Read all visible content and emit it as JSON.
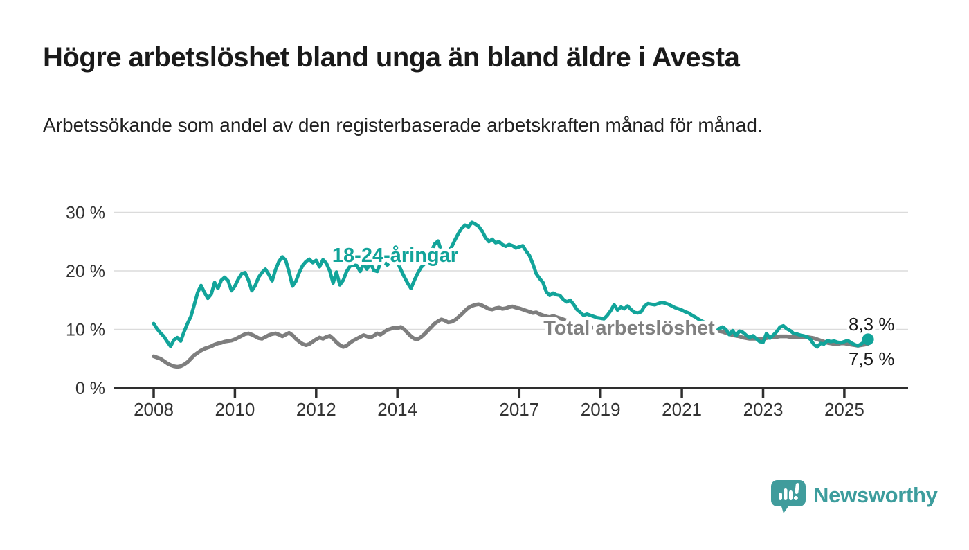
{
  "header": {
    "title": "Högre arbetslöshet bland unga än bland äldre i Avesta",
    "subtitle": "Arbetssökande som andel av den registerbaserade arbetskraften månad för månad."
  },
  "chart_data": {
    "type": "line",
    "title": "Högre arbetslöshet bland unga än bland äldre i Avesta",
    "subtitle": "Arbetssökande som andel av den registerbaserade arbetskraften månad för månad.",
    "unit": "%",
    "frequency": "monthly",
    "x_start": "2008-01",
    "x_end": "2025-08",
    "ylim": [
      0,
      32
    ],
    "grid": "horizontal",
    "grid_color": "#dbdbdb",
    "axis_color": "#2e2e2e",
    "tick_label_color": "#333333",
    "y_ticks": [
      {
        "value": 30,
        "label": "30 %"
      },
      {
        "value": 20,
        "label": "20 %"
      },
      {
        "value": 10,
        "label": "10 %"
      },
      {
        "value": 0,
        "label": "0 %"
      }
    ],
    "x_ticks": [
      {
        "year": 2008,
        "label": "2008"
      },
      {
        "year": 2010,
        "label": "2010"
      },
      {
        "year": 2012,
        "label": "2012"
      },
      {
        "year": 2014,
        "label": "2014"
      },
      {
        "year": 2017,
        "label": "2017"
      },
      {
        "year": 2019,
        "label": "2019"
      },
      {
        "year": 2021,
        "label": "2021"
      },
      {
        "year": 2023,
        "label": "2023"
      },
      {
        "year": 2025,
        "label": "2025"
      }
    ],
    "series": [
      {
        "name": "Total arbetslöshet",
        "label_text": "Total arbetslöshet",
        "color": "#7e7e7e",
        "label_color": "#808080",
        "end_label": "7,5 %",
        "end_value": 7.5,
        "end_dot": false,
        "values": [
          5.4,
          5.2,
          5.0,
          4.6,
          4.2,
          3.9,
          3.7,
          3.6,
          3.7,
          4.0,
          4.4,
          5.0,
          5.6,
          6.0,
          6.4,
          6.7,
          6.9,
          7.1,
          7.4,
          7.6,
          7.7,
          7.9,
          8.0,
          8.1,
          8.3,
          8.6,
          8.9,
          9.2,
          9.3,
          9.1,
          8.8,
          8.5,
          8.4,
          8.7,
          9.0,
          9.2,
          9.3,
          9.1,
          8.8,
          9.1,
          9.4,
          9.0,
          8.4,
          7.9,
          7.5,
          7.3,
          7.5,
          7.9,
          8.3,
          8.6,
          8.4,
          8.7,
          8.9,
          8.4,
          7.8,
          7.3,
          7.0,
          7.2,
          7.7,
          8.1,
          8.4,
          8.7,
          9.0,
          8.8,
          8.6,
          8.9,
          9.3,
          9.1,
          9.5,
          9.9,
          10.1,
          10.3,
          10.2,
          10.4,
          10.0,
          9.4,
          8.8,
          8.4,
          8.3,
          8.7,
          9.2,
          9.8,
          10.4,
          11.0,
          11.4,
          11.7,
          11.5,
          11.2,
          11.3,
          11.6,
          12.1,
          12.6,
          13.2,
          13.7,
          14.0,
          14.2,
          14.3,
          14.1,
          13.8,
          13.5,
          13.4,
          13.6,
          13.7,
          13.5,
          13.6,
          13.8,
          13.9,
          13.7,
          13.6,
          13.4,
          13.2,
          13.0,
          12.8,
          12.9,
          12.6,
          12.4,
          12.2,
          12.1,
          12.3,
          12.1,
          11.9,
          11.7,
          11.5,
          11.3,
          11.1,
          10.9,
          10.8,
          10.7,
          10.5,
          10.4,
          10.3,
          10.2,
          10.1,
          10.0,
          9.9,
          9.8,
          9.8,
          9.9,
          10.0,
          10.0,
          9.9,
          9.9,
          9.8,
          9.8,
          9.8,
          9.7,
          9.8,
          10.2,
          10.4,
          10.5,
          10.6,
          10.5,
          10.4,
          10.3,
          10.2,
          10.1,
          10.1,
          10.0,
          9.9,
          9.8,
          9.7,
          9.6,
          9.6,
          9.5,
          9.5,
          9.6,
          9.7,
          9.7,
          9.6,
          9.4,
          9.2,
          9.0,
          8.9,
          8.8,
          8.6,
          8.5,
          8.4,
          8.4,
          8.4,
          8.4,
          8.4,
          8.5,
          8.6,
          8.6,
          8.7,
          8.8,
          8.8,
          8.8,
          8.7,
          8.7,
          8.6,
          8.6,
          8.6,
          8.7,
          8.6,
          8.5,
          8.3,
          8.1,
          7.9,
          7.7,
          7.6,
          7.5,
          7.5,
          7.6,
          7.6,
          7.5,
          7.4,
          7.3,
          7.2,
          7.3,
          7.4,
          7.5
        ]
      },
      {
        "name": "18-24-åringar",
        "label_text": "18-24-åringar",
        "color": "#12a49a",
        "label_color": "#12a49a",
        "end_label": "8,3 %",
        "end_value": 8.3,
        "end_dot": true,
        "values": [
          11.0,
          10.1,
          9.4,
          8.8,
          7.9,
          7.1,
          8.2,
          8.6,
          8.0,
          9.6,
          11.0,
          12.2,
          14.2,
          16.3,
          17.5,
          16.3,
          15.3,
          16.0,
          18.0,
          17.0,
          18.4,
          18.9,
          18.3,
          16.6,
          17.4,
          18.6,
          19.5,
          19.7,
          18.4,
          16.6,
          17.5,
          18.9,
          19.7,
          20.3,
          19.4,
          18.3,
          20.2,
          21.6,
          22.4,
          21.8,
          19.8,
          17.4,
          18.2,
          19.7,
          20.9,
          21.6,
          22.0,
          21.4,
          21.8,
          20.7,
          21.9,
          21.3,
          20.0,
          17.9,
          19.8,
          17.6,
          18.4,
          19.9,
          20.8,
          21.0,
          20.9,
          19.9,
          21.2,
          20.3,
          21.4,
          20.1,
          19.9,
          21.3,
          21.6,
          21.0,
          21.5,
          21.7,
          21.5,
          20.2,
          19.0,
          17.9,
          17.0,
          18.4,
          19.6,
          20.6,
          21.2,
          21.9,
          23.3,
          24.6,
          25.1,
          23.3,
          22.7,
          23.2,
          24.1,
          25.3,
          26.4,
          27.3,
          27.8,
          27.5,
          28.3,
          28.0,
          27.6,
          26.8,
          25.7,
          25.0,
          25.4,
          24.8,
          25.0,
          24.5,
          24.2,
          24.5,
          24.3,
          23.9,
          24.1,
          24.3,
          23.4,
          22.6,
          21.2,
          19.5,
          18.7,
          18.0,
          16.4,
          15.8,
          16.2,
          15.9,
          15.8,
          15.1,
          14.7,
          15.0,
          14.3,
          13.4,
          12.9,
          12.4,
          12.6,
          12.4,
          12.2,
          12.0,
          11.9,
          11.8,
          12.4,
          13.2,
          14.2,
          13.3,
          13.8,
          13.5,
          14.0,
          13.4,
          12.9,
          12.8,
          13.0,
          14.0,
          14.4,
          14.3,
          14.2,
          14.4,
          14.6,
          14.5,
          14.3,
          14.0,
          13.7,
          13.5,
          13.3,
          13.0,
          12.8,
          12.4,
          12.1,
          11.7,
          11.4,
          11.1,
          10.8,
          10.5,
          10.3,
          10.1,
          10.4,
          10.0,
          9.1,
          9.8,
          8.9,
          9.7,
          9.5,
          9.0,
          8.6,
          8.9,
          8.4,
          7.9,
          7.8,
          9.3,
          8.5,
          9.0,
          9.6,
          10.4,
          10.6,
          10.1,
          9.8,
          9.3,
          9.2,
          9.0,
          8.9,
          8.7,
          8.3,
          7.4,
          7.0,
          7.6,
          7.5,
          8.1,
          7.9,
          8.0,
          7.8,
          7.7,
          7.9,
          8.1,
          7.7,
          7.4,
          7.2,
          7.5,
          7.9,
          8.3
        ]
      }
    ],
    "annotations": {
      "end_label_color": "#1a1a1a"
    }
  },
  "branding": {
    "logo_text": "Newsworthy",
    "logo_color": "#3d9d9d",
    "logo_icon": "bar-chart-speech-bubble"
  }
}
